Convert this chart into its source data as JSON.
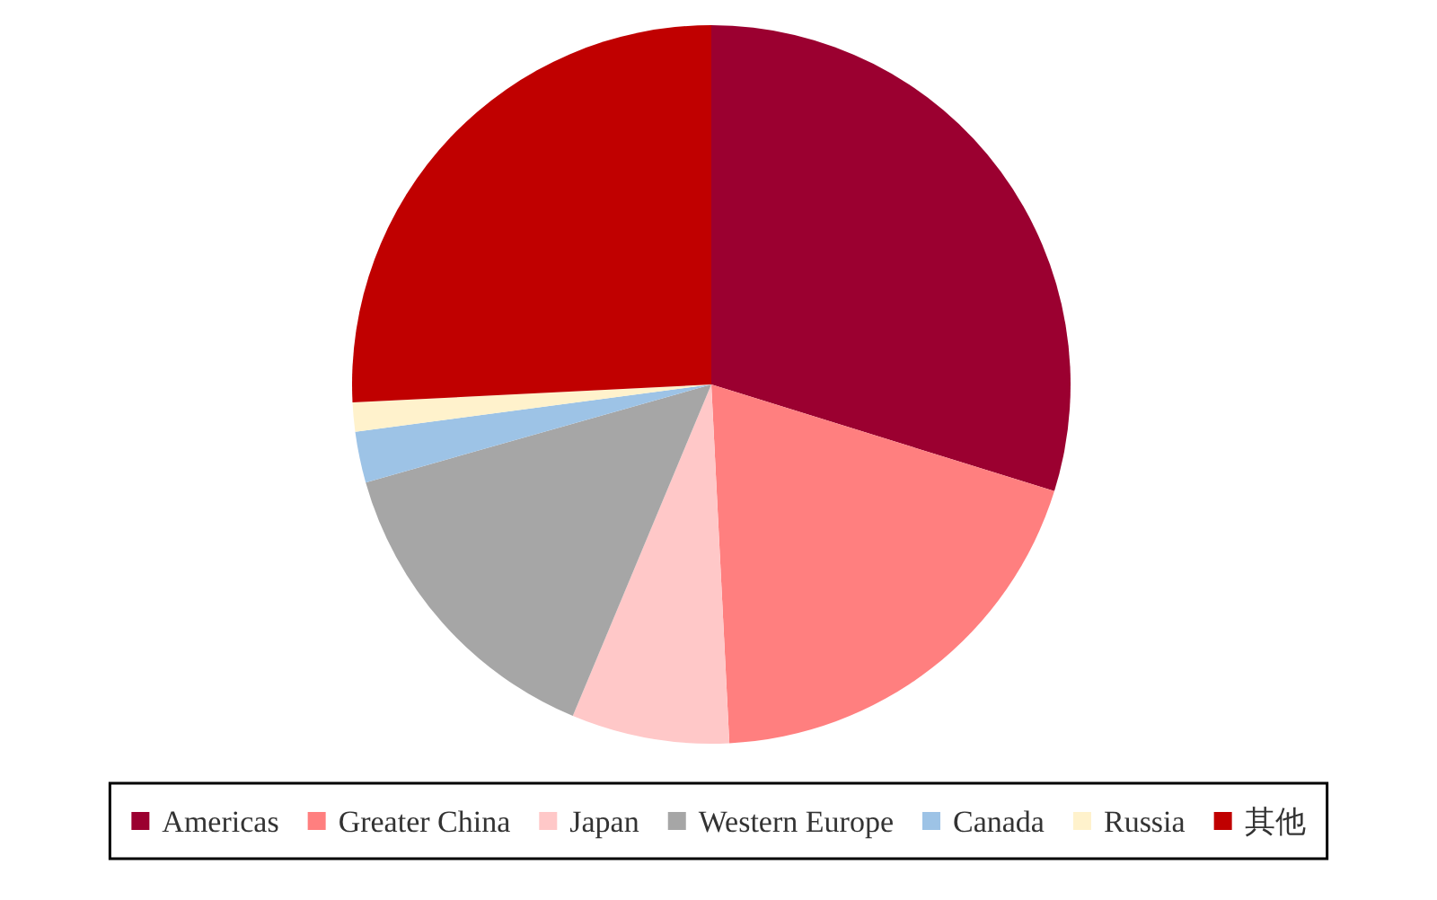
{
  "chart_data": {
    "type": "pie",
    "categories": [
      "Americas",
      "Greater China",
      "Japan",
      "Western Europe",
      "Canada",
      "Russia",
      "其他"
    ],
    "values": [
      29.8,
      19.4,
      7.1,
      14.3,
      2.3,
      1.3,
      25.8
    ],
    "colors": [
      "#9b0030",
      "#ff7f7f",
      "#ffc8c8",
      "#a6a6a6",
      "#9dc3e6",
      "#fff2cc",
      "#c00000"
    ],
    "legend": "bottom"
  }
}
